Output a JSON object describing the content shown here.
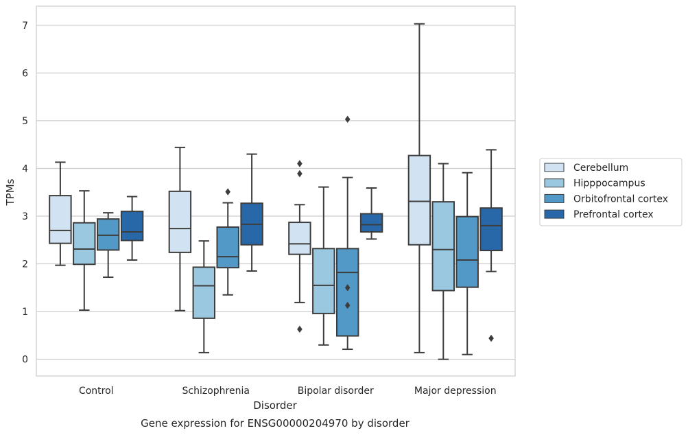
{
  "chart_data": {
    "type": "boxplot",
    "title": "Gene expression for ENSG00000204970 by disorder",
    "xlabel": "Disorder",
    "ylabel": "TPMs",
    "ylim": [
      -0.35,
      7.4
    ],
    "yticks": [
      0,
      1,
      2,
      3,
      4,
      5,
      6,
      7
    ],
    "grid": "horizontal",
    "legend_position": "right",
    "categories": [
      "Control",
      "Schizophrenia",
      "Bipolar disorder",
      "Major depression"
    ],
    "series": [
      {
        "name": "Cerebellum",
        "color": "#d1e2f2",
        "boxes": [
          {
            "whislo": 1.97,
            "q1": 2.43,
            "med": 2.7,
            "q3": 3.43,
            "whishi": 4.13,
            "fliers": []
          },
          {
            "whislo": 1.02,
            "q1": 2.24,
            "med": 2.74,
            "q3": 3.52,
            "whishi": 4.44,
            "fliers": []
          },
          {
            "whislo": 1.19,
            "q1": 2.2,
            "med": 2.42,
            "q3": 2.87,
            "whishi": 3.24,
            "fliers": [
              0.63,
              3.89,
              4.1
            ]
          },
          {
            "whislo": 0.14,
            "q1": 2.4,
            "med": 3.31,
            "q3": 4.27,
            "whishi": 7.03,
            "fliers": []
          }
        ]
      },
      {
        "name": "Hipppocampus",
        "color": "#9ac8e0",
        "boxes": [
          {
            "whislo": 1.03,
            "q1": 1.99,
            "med": 2.31,
            "q3": 2.86,
            "whishi": 3.53,
            "fliers": []
          },
          {
            "whislo": 0.14,
            "q1": 0.86,
            "med": 1.54,
            "q3": 1.93,
            "whishi": 2.48,
            "fliers": []
          },
          {
            "whislo": 0.3,
            "q1": 0.96,
            "med": 1.55,
            "q3": 2.32,
            "whishi": 3.61,
            "fliers": []
          },
          {
            "whislo": 0.0,
            "q1": 1.44,
            "med": 2.3,
            "q3": 3.3,
            "whishi": 4.1,
            "fliers": []
          }
        ]
      },
      {
        "name": "Orbitofrontal cortex",
        "color": "#5299c8",
        "boxes": [
          {
            "whislo": 1.72,
            "q1": 2.29,
            "med": 2.6,
            "q3": 2.94,
            "whishi": 3.07,
            "fliers": []
          },
          {
            "whislo": 1.35,
            "q1": 1.92,
            "med": 2.15,
            "q3": 2.77,
            "whishi": 3.28,
            "fliers": [
              3.51
            ]
          },
          {
            "whislo": 0.21,
            "q1": 0.49,
            "med": 1.82,
            "q3": 2.32,
            "whishi": 3.81,
            "fliers": [
              1.13,
              1.5,
              5.03
            ]
          },
          {
            "whislo": 0.1,
            "q1": 1.51,
            "med": 2.08,
            "q3": 2.99,
            "whishi": 3.91,
            "fliers": []
          }
        ]
      },
      {
        "name": "Prefrontal cortex",
        "color": "#2867a8",
        "boxes": [
          {
            "whislo": 2.08,
            "q1": 2.49,
            "med": 2.67,
            "q3": 3.1,
            "whishi": 3.41,
            "fliers": []
          },
          {
            "whislo": 1.85,
            "q1": 2.4,
            "med": 2.83,
            "q3": 3.27,
            "whishi": 4.3,
            "fliers": []
          },
          {
            "whislo": 2.52,
            "q1": 2.67,
            "med": 2.82,
            "q3": 3.05,
            "whishi": 3.59,
            "fliers": []
          },
          {
            "whislo": 1.84,
            "q1": 2.28,
            "med": 2.8,
            "q3": 3.17,
            "whishi": 4.39,
            "fliers": [
              0.44
            ]
          }
        ]
      }
    ]
  }
}
